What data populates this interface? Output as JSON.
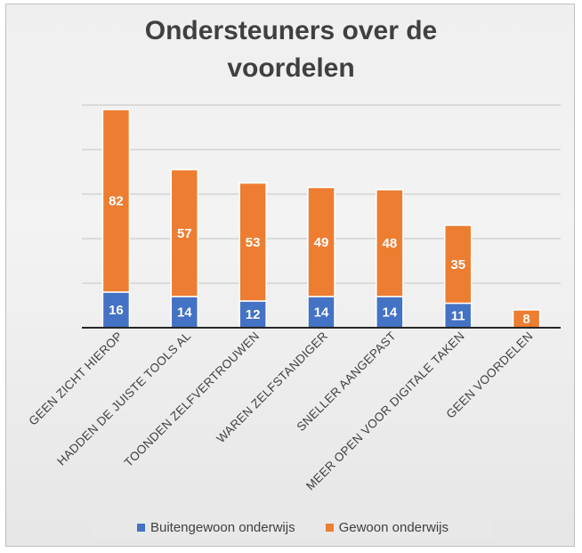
{
  "chart_data": {
    "type": "bar",
    "stacked": true,
    "title_lines": [
      "Ondersteuners over de",
      "voordelen"
    ],
    "categories": [
      "GEEN ZICHT HIEROP",
      "HADDEN DE JUISTE TOOLS AL",
      "TOONDEN ZELFVERTROUWEN",
      "WAREN ZELFSTANDIGER",
      "SNELLER AANGEPAST",
      "MEER OPEN VOOR DIGITALE TAKEN",
      "GEEN VOORDELEN"
    ],
    "series": [
      {
        "name": "Buitengewoon onderwijs",
        "color": "#4472c4",
        "values": [
          16,
          14,
          12,
          14,
          14,
          11,
          0
        ]
      },
      {
        "name": "Gewoon onderwijs",
        "color": "#ed7d31",
        "values": [
          82,
          57,
          53,
          49,
          48,
          35,
          8
        ]
      }
    ],
    "ylim": [
      0,
      100
    ],
    "gridlines": true,
    "y_tick_labels_shown": false,
    "data_labels": true,
    "legend_position": "bottom"
  }
}
